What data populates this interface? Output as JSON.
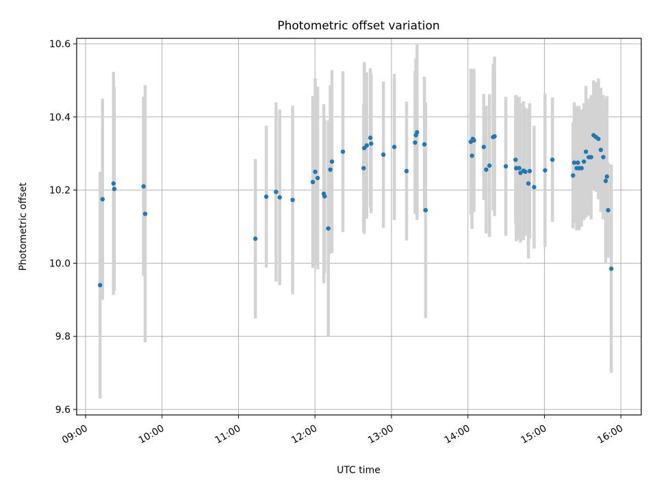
{
  "chart_data": {
    "type": "scatter",
    "title": "Photometric offset variation",
    "xlabel": "UTC time",
    "ylabel": "Photometric offset",
    "x_ticks": [
      "09:00",
      "10:00",
      "11:00",
      "12:00",
      "13:00",
      "14:00",
      "15:00",
      "16:00"
    ],
    "y_ticks": [
      "9.6",
      "9.8",
      "10.0",
      "10.2",
      "10.4",
      "10.6"
    ],
    "xlim": [
      "08:53",
      "16:16"
    ],
    "ylim": [
      9.585,
      10.615
    ],
    "grid": true,
    "colors": {
      "point": "#1f77b4",
      "errorbar": "#d3d3d3",
      "grid": "#b0b0b0"
    },
    "points": [
      {
        "x": "09:11:24",
        "y": 9.94,
        "err": 0.31
      },
      {
        "x": "09:13:19",
        "y": 10.175,
        "err": 0.275
      },
      {
        "x": "09:21:55",
        "y": 10.218,
        "err": 0.305
      },
      {
        "x": "09:22:33",
        "y": 10.203,
        "err": 0.278
      },
      {
        "x": "09:45:31",
        "y": 10.21,
        "err": 0.245
      },
      {
        "x": "09:46:46",
        "y": 10.135,
        "err": 0.352
      },
      {
        "x": "11:13:13",
        "y": 10.067,
        "err": 0.218
      },
      {
        "x": "11:21:48",
        "y": 10.182,
        "err": 0.194
      },
      {
        "x": "11:29:27",
        "y": 10.195,
        "err": 0.245
      },
      {
        "x": "11:32:20",
        "y": 10.18,
        "err": 0.24
      },
      {
        "x": "11:42:26",
        "y": 10.173,
        "err": 0.258
      },
      {
        "x": "11:58:18",
        "y": 10.222,
        "err": 0.235
      },
      {
        "x": "12:00:11",
        "y": 10.25,
        "err": 0.255
      },
      {
        "x": "12:02:07",
        "y": 10.233,
        "err": 0.25
      },
      {
        "x": "12:06:55",
        "y": 10.19,
        "err": 0.245
      },
      {
        "x": "12:07:33",
        "y": 10.183,
        "err": 0.21
      },
      {
        "x": "12:10:26",
        "y": 10.095,
        "err": 0.295
      },
      {
        "x": "12:13:19",
        "y": 10.278,
        "err": 0.25
      },
      {
        "x": "12:12:00",
        "y": 10.256,
        "err": 0.23
      },
      {
        "x": "12:21:54",
        "y": 10.305,
        "err": 0.22
      },
      {
        "x": "12:38:11",
        "y": 10.26,
        "err": 0.175
      },
      {
        "x": "12:38:41",
        "y": 10.315,
        "err": 0.235
      },
      {
        "x": "12:40:35",
        "y": 10.322,
        "err": 0.2
      },
      {
        "x": "12:43:28",
        "y": 10.343,
        "err": 0.19
      },
      {
        "x": "12:44:05",
        "y": 10.327,
        "err": 0.19
      },
      {
        "x": "12:53:40",
        "y": 10.297,
        "err": 0.2
      },
      {
        "x": "13:02:15",
        "y": 10.318,
        "err": 0.2
      },
      {
        "x": "13:11:50",
        "y": 10.252,
        "err": 0.19
      },
      {
        "x": "13:18:31",
        "y": 10.33,
        "err": 0.195
      },
      {
        "x": "13:19:08",
        "y": 10.35,
        "err": 0.21
      },
      {
        "x": "13:20:06",
        "y": 10.358,
        "err": 0.24
      },
      {
        "x": "13:25:51",
        "y": 10.325,
        "err": 0.185
      },
      {
        "x": "13:26:48",
        "y": 10.145,
        "err": 0.295
      },
      {
        "x": "14:02:15",
        "y": 10.332,
        "err": 0.2
      },
      {
        "x": "14:03:12",
        "y": 10.294,
        "err": 0.2
      },
      {
        "x": "14:04:46",
        "y": 10.336,
        "err": 0.196
      },
      {
        "x": "14:03:51",
        "y": 10.34,
        "err": 0.188
      },
      {
        "x": "14:12:25",
        "y": 10.318,
        "err": 0.145
      },
      {
        "x": "14:14:19",
        "y": 10.256,
        "err": 0.175
      },
      {
        "x": "14:16:55",
        "y": 10.267,
        "err": 0.195
      },
      {
        "x": "14:19:47",
        "y": 10.345,
        "err": 0.2
      },
      {
        "x": "14:20:54",
        "y": 10.347,
        "err": 0.218
      },
      {
        "x": "14:29:43",
        "y": 10.265,
        "err": 0.19
      },
      {
        "x": "14:37:22",
        "y": 10.283,
        "err": 0.175
      },
      {
        "x": "14:37:54",
        "y": 10.26,
        "err": 0.2
      },
      {
        "x": "14:40:15",
        "y": 10.26,
        "err": 0.195
      },
      {
        "x": "14:41:13",
        "y": 10.247,
        "err": 0.19
      },
      {
        "x": "14:43:39",
        "y": 10.253,
        "err": 0.19
      },
      {
        "x": "14:45:01",
        "y": 10.25,
        "err": 0.175
      },
      {
        "x": "14:47:27",
        "y": 10.218,
        "err": 0.205
      },
      {
        "x": "14:48:29",
        "y": 10.252,
        "err": 0.185
      },
      {
        "x": "14:51:56",
        "y": 10.208,
        "err": 0.168
      },
      {
        "x": "15:00:31",
        "y": 10.254,
        "err": 0.21
      },
      {
        "x": "15:06:16",
        "y": 10.283,
        "err": 0.17
      },
      {
        "x": "15:22:28",
        "y": 10.24,
        "err": 0.145
      },
      {
        "x": "15:23:25",
        "y": 10.275,
        "err": 0.165
      },
      {
        "x": "15:25:19",
        "y": 10.26,
        "err": 0.17
      },
      {
        "x": "15:26:16",
        "y": 10.275,
        "err": 0.15
      },
      {
        "x": "15:27:13",
        "y": 10.26,
        "err": 0.17
      },
      {
        "x": "15:29:07",
        "y": 10.26,
        "err": 0.16
      },
      {
        "x": "15:31:00",
        "y": 10.278,
        "err": 0.16
      },
      {
        "x": "15:32:35",
        "y": 10.305,
        "err": 0.18
      },
      {
        "x": "15:34:47",
        "y": 10.29,
        "err": 0.16
      },
      {
        "x": "15:36:40",
        "y": 10.29,
        "err": 0.17
      },
      {
        "x": "15:38:35",
        "y": 10.35,
        "err": 0.15
      },
      {
        "x": "15:40:29",
        "y": 10.345,
        "err": 0.15
      },
      {
        "x": "15:42:23",
        "y": 10.34,
        "err": 0.165
      },
      {
        "x": "15:44:17",
        "y": 10.31,
        "err": 0.17
      },
      {
        "x": "15:46:12",
        "y": 10.29,
        "err": 0.17
      },
      {
        "x": "15:48:06",
        "y": 10.225,
        "err": 0.225
      },
      {
        "x": "15:49:03",
        "y": 10.237,
        "err": 0.22
      },
      {
        "x": "15:50:00",
        "y": 10.145,
        "err": 0.13
      },
      {
        "x": "15:52:30",
        "y": 9.985,
        "err": 0.285
      }
    ]
  }
}
